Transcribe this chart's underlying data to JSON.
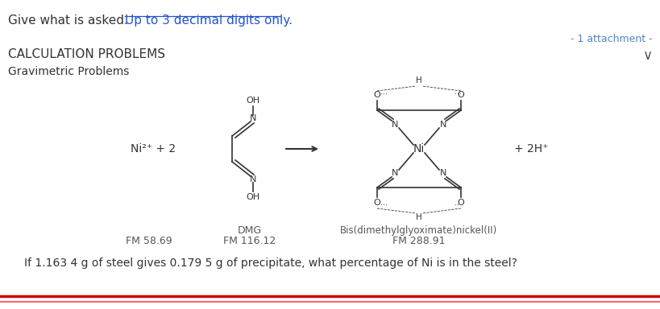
{
  "bg_color": "#ffffff",
  "title_part1": "Give what is asked. ",
  "title_part2": "Up to 3 decimal digits only.",
  "title_color1": "#333333",
  "title_color2": "#2255cc",
  "attachment_text": "- 1 attachment -",
  "attachment_color": "#4a86c8",
  "section1": "CALCULATION PROBLEMS",
  "section2": "Gravimetric Problems",
  "section_color": "#333333",
  "question_text": "If 1.163 4 g of steel gives 0.179 5 g of precipitate, what percentage of Ni is in the steel?",
  "question_color": "#333333",
  "bottom_line1_color": "#cc0000",
  "bottom_line2_color": "#ff6666",
  "chevron_color": "#555555",
  "struct_color": "#333333",
  "label_color": "#555555",
  "fig_width": 8.2,
  "fig_height": 3.84,
  "dpi": 100
}
